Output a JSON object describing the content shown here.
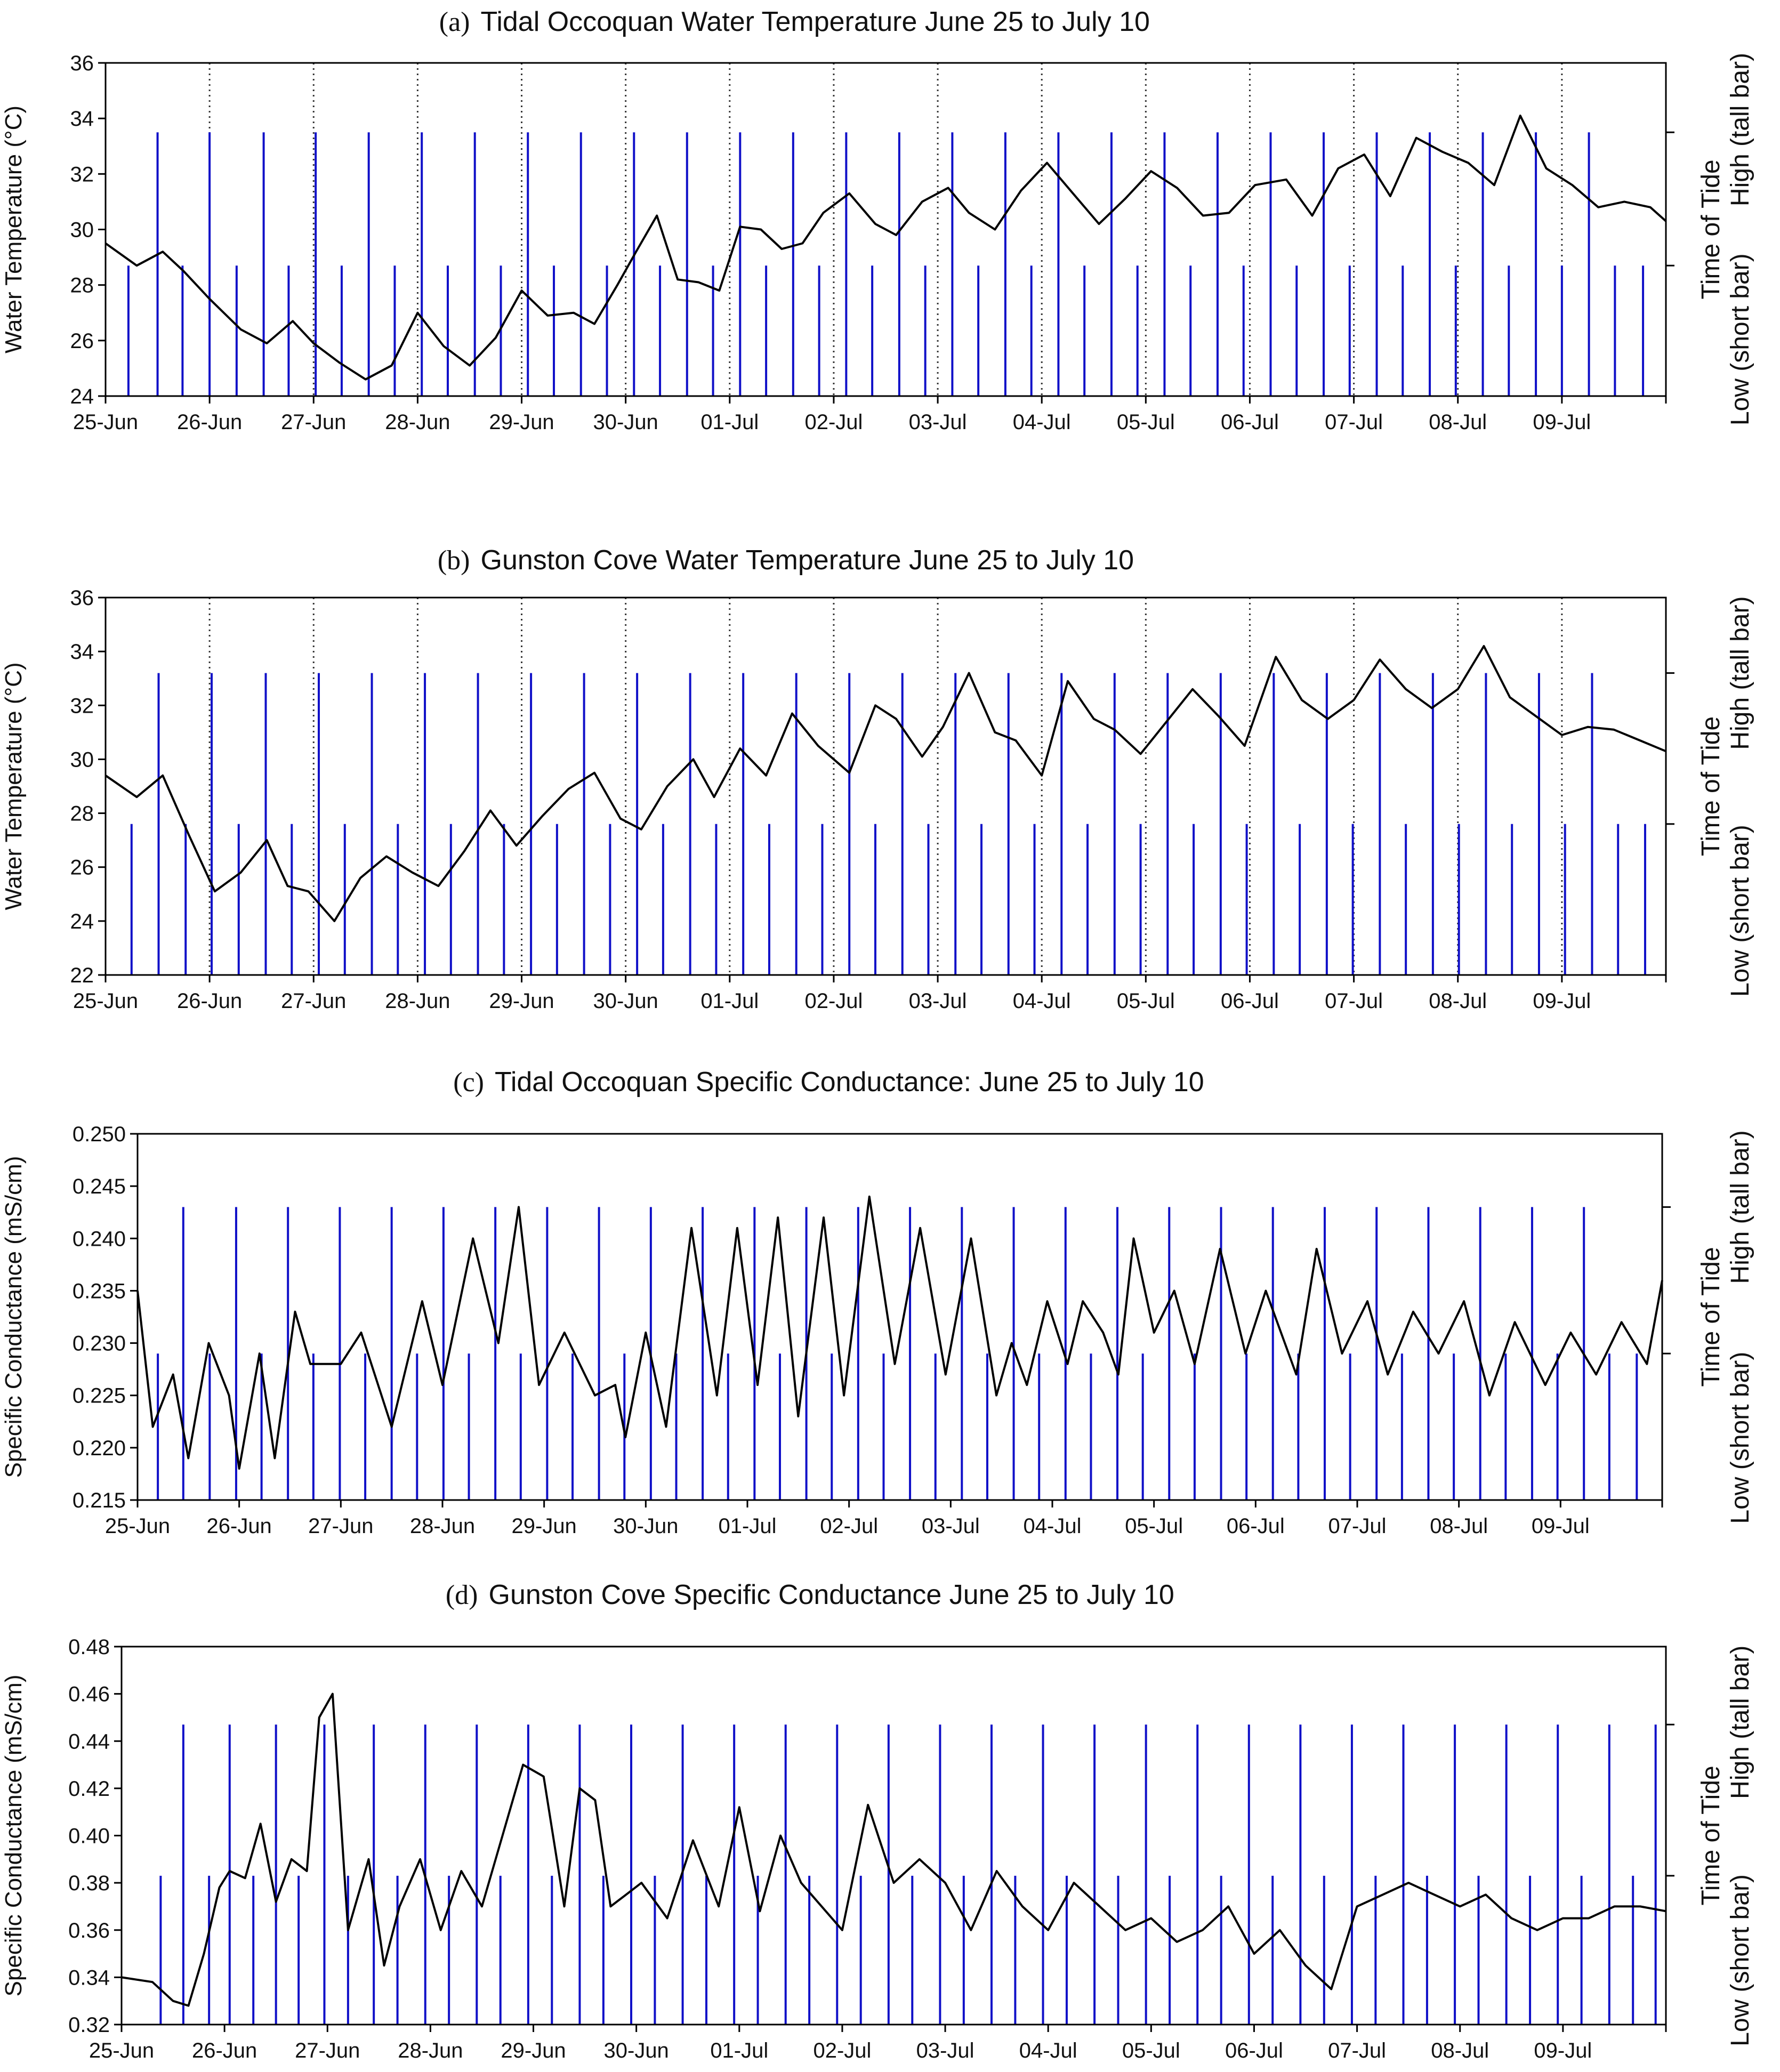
{
  "figure": {
    "x_axis_labels": [
      "25-Jun",
      "26-Jun",
      "27-Jun",
      "28-Jun",
      "29-Jun",
      "30-Jun",
      "01-Jul",
      "02-Jul",
      "03-Jul",
      "04-Jul",
      "05-Jul",
      "06-Jul",
      "07-Jul",
      "08-Jul",
      "09-Jul"
    ],
    "right_axis_low": "Low (short bar)",
    "right_axis_middle": "Time of Tide",
    "right_axis_high": "High (tall bar)",
    "colors": {
      "tide_bar": "#1010c8",
      "series_line": "#000000",
      "axis": "#000000"
    }
  },
  "chart_data": [
    {
      "type": "line",
      "letter": "(a)",
      "title": "Tidal Occoquan Water Temperature June 25 to July 10",
      "ylabel": "Water Temperature (°C)",
      "ylim": [
        24,
        36
      ],
      "yticks": [
        "24",
        "26",
        "28",
        "30",
        "32",
        "34",
        "36"
      ],
      "xlim": [
        0,
        15
      ],
      "day_dividers": true,
      "high_tide_value": 33.5,
      "low_tide_value": 28.7,
      "high_tides": [
        0.5,
        1.0,
        1.52,
        2.02,
        2.53,
        3.04,
        3.55,
        4.06,
        4.57,
        5.08,
        5.59,
        6.1,
        6.61,
        7.12,
        7.63,
        8.14,
        8.65,
        9.16,
        9.67,
        10.18,
        10.69,
        11.2,
        11.71,
        12.22,
        12.73,
        13.24,
        13.75,
        14.26
      ],
      "low_tides": [
        0.22,
        0.74,
        1.26,
        1.76,
        2.27,
        2.78,
        3.29,
        3.8,
        4.31,
        4.82,
        5.33,
        5.84,
        6.35,
        6.86,
        7.37,
        7.88,
        8.39,
        8.9,
        9.41,
        9.92,
        10.43,
        10.94,
        11.45,
        11.96,
        12.47,
        12.98,
        13.49,
        14.0,
        14.51,
        14.78
      ],
      "series_x": [
        0,
        0.3,
        0.55,
        0.75,
        1.0,
        1.3,
        1.55,
        1.8,
        2.0,
        2.25,
        2.5,
        2.75,
        3.0,
        3.25,
        3.5,
        3.75,
        4.0,
        4.25,
        4.5,
        4.7,
        4.92,
        5.1,
        5.3,
        5.5,
        5.7,
        5.9,
        6.1,
        6.3,
        6.5,
        6.7,
        6.9,
        7.15,
        7.4,
        7.6,
        7.85,
        8.1,
        8.3,
        8.55,
        8.8,
        9.05,
        9.3,
        9.55,
        9.8,
        10.05,
        10.3,
        10.55,
        10.8,
        11.05,
        11.35,
        11.6,
        11.85,
        12.1,
        12.35,
        12.6,
        12.85,
        13.1,
        13.35,
        13.6,
        13.85,
        14.1,
        14.35,
        14.6,
        14.85,
        15.0
      ],
      "series_y": [
        29.5,
        28.7,
        29.2,
        28.5,
        27.5,
        26.4,
        25.9,
        26.7,
        25.9,
        25.2,
        24.6,
        25.1,
        27.0,
        25.8,
        25.1,
        26.1,
        27.8,
        26.9,
        27.0,
        26.6,
        28.0,
        29.2,
        30.5,
        28.2,
        28.1,
        27.8,
        30.1,
        30.0,
        29.3,
        29.5,
        30.6,
        31.3,
        30.2,
        29.8,
        31.0,
        31.5,
        30.6,
        30.0,
        31.4,
        32.4,
        31.3,
        30.2,
        31.1,
        32.1,
        31.5,
        30.5,
        30.6,
        31.6,
        31.8,
        30.5,
        32.2,
        32.7,
        31.2,
        33.3,
        32.8,
        32.4,
        31.6,
        34.1,
        32.2,
        31.6,
        30.8,
        31.0,
        30.8,
        30.3
      ]
    },
    {
      "type": "line",
      "letter": "(b)",
      "title": "Gunston Cove Water Temperature June 25 to July 10",
      "ylabel": "Water Temperature (°C)",
      "ylim": [
        22,
        36
      ],
      "yticks": [
        "22",
        "24",
        "26",
        "28",
        "30",
        "32",
        "34",
        "36"
      ],
      "xlim": [
        0,
        15
      ],
      "day_dividers": true,
      "high_tide_value": 33.2,
      "low_tide_value": 27.6,
      "high_tides": [
        0.51,
        1.02,
        1.54,
        2.05,
        2.56,
        3.07,
        3.58,
        4.09,
        4.6,
        5.11,
        5.62,
        6.13,
        6.64,
        7.15,
        7.66,
        8.17,
        8.68,
        9.19,
        9.7,
        10.21,
        10.72,
        11.23,
        11.74,
        12.25,
        12.76,
        13.27,
        13.78,
        14.29
      ],
      "low_tides": [
        0.25,
        0.77,
        1.28,
        1.79,
        2.3,
        2.81,
        3.32,
        3.83,
        4.34,
        4.85,
        5.36,
        5.87,
        6.38,
        6.89,
        7.4,
        7.91,
        8.42,
        8.93,
        9.44,
        9.95,
        10.46,
        10.97,
        11.48,
        11.99,
        12.5,
        13.01,
        13.52,
        14.03,
        14.54,
        14.8
      ],
      "series_x": [
        0,
        0.3,
        0.55,
        0.8,
        1.05,
        1.3,
        1.55,
        1.75,
        1.95,
        2.2,
        2.45,
        2.7,
        2.95,
        3.2,
        3.45,
        3.7,
        3.95,
        4.2,
        4.45,
        4.7,
        4.95,
        5.15,
        5.4,
        5.65,
        5.85,
        6.1,
        6.35,
        6.6,
        6.85,
        7.15,
        7.4,
        7.6,
        7.85,
        8.05,
        8.3,
        8.55,
        8.75,
        9.0,
        9.25,
        9.5,
        9.7,
        9.95,
        10.2,
        10.45,
        10.7,
        10.95,
        11.25,
        11.5,
        11.75,
        12.0,
        12.25,
        12.5,
        12.75,
        13.0,
        13.25,
        13.5,
        13.75,
        14.0,
        14.25,
        14.5,
        14.75,
        15.0
      ],
      "series_y": [
        29.4,
        28.6,
        29.4,
        27.2,
        25.1,
        25.8,
        27.0,
        25.3,
        25.1,
        24.0,
        25.6,
        26.4,
        25.8,
        25.3,
        26.6,
        28.1,
        26.8,
        27.9,
        28.9,
        29.5,
        27.8,
        27.4,
        29.0,
        30.0,
        28.6,
        30.4,
        29.4,
        31.7,
        30.5,
        29.5,
        32.0,
        31.5,
        30.1,
        31.2,
        33.2,
        31.0,
        30.7,
        29.4,
        32.9,
        31.5,
        31.1,
        30.2,
        31.4,
        32.6,
        31.6,
        30.5,
        33.8,
        32.2,
        31.5,
        32.2,
        33.7,
        32.6,
        31.9,
        32.6,
        34.2,
        32.3,
        31.6,
        30.9,
        31.2,
        31.1,
        30.7,
        30.3
      ]
    },
    {
      "type": "line",
      "letter": "(c)",
      "title": "Tidal Occoquan Specific Conductance: June 25 to July 10",
      "ylabel": "Specific Conductance (mS/cm)",
      "ylim": [
        0.215,
        0.25
      ],
      "yticks": [
        "0.215",
        "0.220",
        "0.225",
        "0.230",
        "0.235",
        "0.240",
        "0.245",
        "0.250"
      ],
      "xlim": [
        0,
        15
      ],
      "day_dividers": false,
      "high_tide_value": 0.243,
      "low_tide_value": 0.229,
      "high_tides": [
        0.45,
        0.97,
        1.48,
        1.99,
        2.5,
        3.01,
        3.52,
        4.03,
        4.54,
        5.05,
        5.56,
        6.07,
        6.58,
        7.09,
        7.6,
        8.11,
        8.62,
        9.13,
        9.64,
        10.15,
        10.66,
        11.17,
        11.68,
        12.19,
        12.7,
        13.21,
        13.72,
        14.23
      ],
      "low_tides": [
        0.2,
        0.71,
        1.22,
        1.73,
        2.24,
        2.75,
        3.26,
        3.77,
        4.28,
        4.79,
        5.3,
        5.81,
        6.32,
        6.83,
        7.34,
        7.85,
        8.36,
        8.87,
        9.38,
        9.89,
        10.4,
        10.91,
        11.42,
        11.93,
        12.44,
        12.95,
        13.46,
        13.97,
        14.48,
        14.75
      ],
      "series_x": [
        0,
        0.15,
        0.35,
        0.5,
        0.7,
        0.9,
        1.0,
        1.2,
        1.35,
        1.55,
        1.7,
        1.85,
        2.0,
        2.2,
        2.5,
        2.8,
        3.0,
        3.15,
        3.3,
        3.55,
        3.75,
        3.95,
        4.2,
        4.5,
        4.7,
        4.8,
        5.0,
        5.2,
        5.45,
        5.7,
        5.9,
        6.1,
        6.3,
        6.5,
        6.75,
        6.95,
        7.2,
        7.45,
        7.7,
        7.95,
        8.2,
        8.45,
        8.6,
        8.75,
        8.95,
        9.15,
        9.3,
        9.5,
        9.65,
        9.8,
        10.0,
        10.2,
        10.4,
        10.65,
        10.9,
        11.1,
        11.4,
        11.6,
        11.85,
        12.1,
        12.3,
        12.55,
        12.8,
        13.05,
        13.3,
        13.55,
        13.85,
        14.1,
        14.35,
        14.6,
        14.85,
        15.0
      ],
      "series_y": [
        0.235,
        0.222,
        0.227,
        0.219,
        0.23,
        0.225,
        0.218,
        0.229,
        0.219,
        0.233,
        0.228,
        0.228,
        0.228,
        0.231,
        0.222,
        0.234,
        0.226,
        0.233,
        0.24,
        0.23,
        0.243,
        0.226,
        0.231,
        0.225,
        0.226,
        0.221,
        0.231,
        0.222,
        0.241,
        0.225,
        0.241,
        0.226,
        0.242,
        0.223,
        0.242,
        0.225,
        0.244,
        0.228,
        0.241,
        0.227,
        0.24,
        0.225,
        0.23,
        0.226,
        0.234,
        0.228,
        0.234,
        0.231,
        0.227,
        0.24,
        0.231,
        0.235,
        0.228,
        0.239,
        0.229,
        0.235,
        0.227,
        0.239,
        0.229,
        0.234,
        0.227,
        0.233,
        0.229,
        0.234,
        0.225,
        0.232,
        0.226,
        0.231,
        0.227,
        0.232,
        0.228,
        0.236
      ]
    },
    {
      "type": "line",
      "letter": "(d)",
      "title": "Gunston Cove Specific Conductance June 25 to July 10",
      "ylabel": "Specific Conductance (mS/cm)",
      "ylim": [
        0.32,
        0.48
      ],
      "yticks": [
        "0.32",
        "0.34",
        "0.36",
        "0.38",
        "0.40",
        "0.42",
        "0.44",
        "0.46",
        "0.48"
      ],
      "xlim": [
        0,
        15
      ],
      "day_dividers": false,
      "high_tide_value": 0.447,
      "low_tide_value": 0.383,
      "high_tides": [
        0.6,
        1.05,
        1.5,
        1.97,
        2.45,
        2.95,
        3.45,
        3.95,
        4.45,
        4.95,
        5.45,
        5.95,
        6.45,
        6.95,
        7.45,
        7.95,
        8.45,
        8.95,
        9.45,
        9.95,
        10.45,
        10.95,
        11.45,
        11.95,
        12.45,
        12.95,
        13.45,
        13.95,
        14.45,
        14.9
      ],
      "low_tides": [
        0.38,
        0.85,
        1.28,
        1.72,
        2.2,
        2.68,
        3.18,
        3.68,
        4.18,
        4.68,
        5.18,
        5.68,
        6.18,
        6.68,
        7.18,
        7.68,
        8.18,
        8.68,
        9.18,
        9.68,
        10.18,
        10.68,
        11.18,
        11.68,
        12.18,
        12.68,
        13.18,
        13.68,
        14.18,
        14.68
      ],
      "series_x": [
        0,
        0.3,
        0.5,
        0.65,
        0.8,
        0.95,
        1.05,
        1.2,
        1.35,
        1.5,
        1.65,
        1.8,
        1.92,
        2.05,
        2.2,
        2.4,
        2.55,
        2.7,
        2.9,
        3.1,
        3.3,
        3.5,
        3.7,
        3.9,
        4.1,
        4.3,
        4.45,
        4.6,
        4.75,
        4.9,
        5.05,
        5.3,
        5.55,
        5.8,
        6.0,
        6.2,
        6.4,
        6.6,
        6.8,
        7.0,
        7.25,
        7.5,
        7.75,
        8.0,
        8.25,
        8.5,
        8.75,
        9.0,
        9.25,
        9.5,
        9.75,
        10.0,
        10.25,
        10.5,
        10.75,
        11.0,
        11.25,
        11.5,
        11.75,
        12.0,
        12.25,
        12.5,
        12.75,
        13.0,
        13.25,
        13.5,
        13.75,
        14.0,
        14.25,
        14.5,
        14.75,
        15.0
      ],
      "series_y": [
        0.34,
        0.338,
        0.33,
        0.328,
        0.35,
        0.378,
        0.385,
        0.382,
        0.405,
        0.372,
        0.39,
        0.385,
        0.45,
        0.46,
        0.36,
        0.39,
        0.345,
        0.37,
        0.39,
        0.36,
        0.385,
        0.37,
        0.4,
        0.43,
        0.425,
        0.37,
        0.42,
        0.415,
        0.37,
        0.375,
        0.38,
        0.365,
        0.398,
        0.37,
        0.412,
        0.368,
        0.4,
        0.38,
        0.37,
        0.36,
        0.413,
        0.38,
        0.39,
        0.38,
        0.36,
        0.385,
        0.37,
        0.36,
        0.38,
        0.37,
        0.36,
        0.365,
        0.355,
        0.36,
        0.37,
        0.35,
        0.36,
        0.345,
        0.335,
        0.37,
        0.375,
        0.38,
        0.375,
        0.37,
        0.375,
        0.365,
        0.36,
        0.365,
        0.365,
        0.37,
        0.37,
        0.368
      ]
    }
  ]
}
